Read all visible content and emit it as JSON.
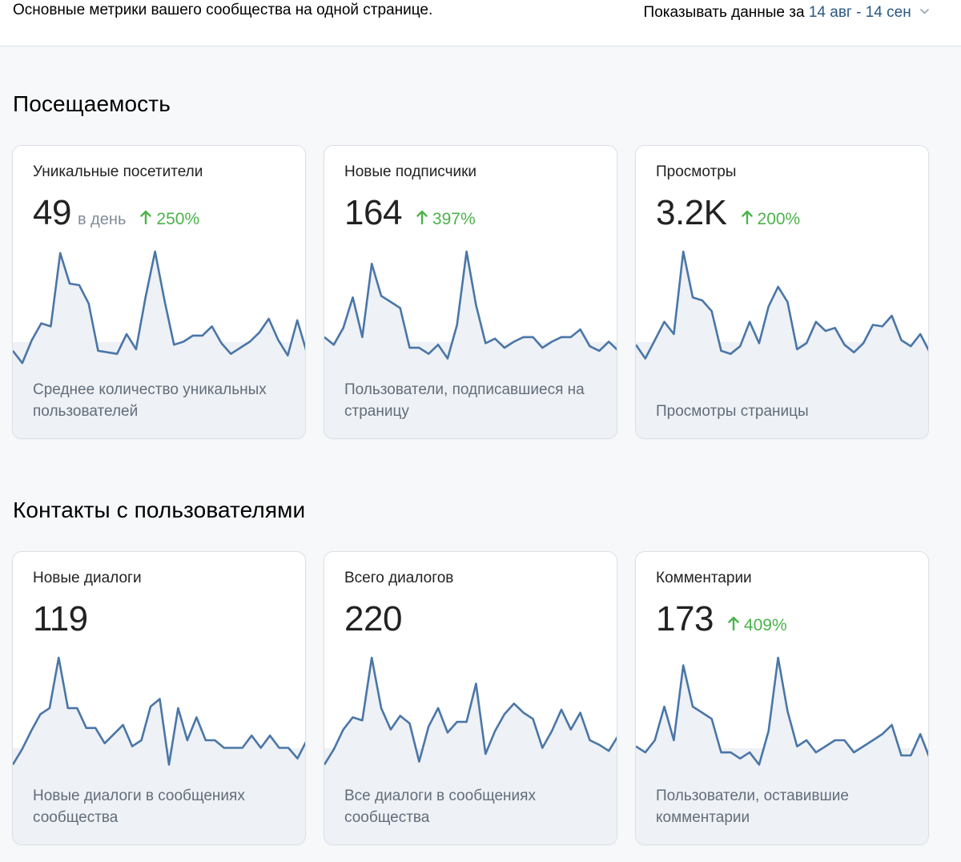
{
  "header": {
    "subtitle": "Основные метрики вашего сообщества на одной странице.",
    "period_label": "Показывать данные за",
    "period_range": "14 авг - 14 сен",
    "chevron_icon": "chevron-down-icon"
  },
  "colors": {
    "line": "#4a76a8",
    "fill": "#eef1f5",
    "positive": "#4bb34b",
    "link": "#2a5885"
  },
  "sections": [
    {
      "title": "Посещаемость",
      "cards": [
        {
          "title": "Уникальные посетители",
          "value": "49",
          "suffix": "в день",
          "change": "250%",
          "change_icon": "arrow-up-icon",
          "description": "Среднее количество уникальных пользователей",
          "series": [
            10,
            2,
            17,
            28,
            26,
            74,
            54,
            53,
            41,
            10,
            9,
            8,
            21,
            11,
            45,
            75,
            43,
            14,
            16,
            20,
            20,
            26,
            15,
            8,
            12,
            16,
            22,
            31,
            17,
            7,
            30,
            9
          ]
        },
        {
          "title": "Новые подписчики",
          "value": "164",
          "suffix": "",
          "change": "397%",
          "change_icon": "arrow-up-icon",
          "description": "Пользователи, подписавшиеся на страницу",
          "series": [
            19,
            14,
            25,
            45,
            19,
            67,
            46,
            42,
            38,
            12,
            12,
            8,
            14,
            5,
            27,
            75,
            40,
            15,
            18,
            12,
            16,
            19,
            19,
            12,
            16,
            19,
            19,
            24,
            13,
            10,
            16,
            10
          ]
        },
        {
          "title": "Просмотры",
          "value": "3.2K",
          "suffix": "",
          "change": "200%",
          "change_icon": "arrow-up-icon",
          "description": "Просмотры страницы",
          "series": [
            14,
            5,
            17,
            29,
            21,
            75,
            45,
            43,
            36,
            10,
            8,
            13,
            29,
            15,
            39,
            52,
            42,
            11,
            15,
            29,
            23,
            25,
            14,
            9,
            15,
            27,
            26,
            33,
            17,
            13,
            21,
            9
          ]
        }
      ]
    },
    {
      "title": "Контакты с пользователями",
      "cards": [
        {
          "title": "Новые диалоги",
          "value": "119",
          "suffix": "",
          "change": "",
          "change_icon": "",
          "description": "Новые диалоги в сообщениях сообщества",
          "series": [
            5,
            15,
            27,
            38,
            42,
            75,
            42,
            42,
            29,
            29,
            19,
            25,
            31,
            17,
            21,
            43,
            48,
            5,
            42,
            21,
            36,
            21,
            21,
            16,
            16,
            16,
            24,
            16,
            24,
            16,
            16,
            9,
            21
          ]
        },
        {
          "title": "Всего диалогов",
          "value": "220",
          "suffix": "",
          "change": "",
          "change_icon": "",
          "description": "Все диалоги в сообщениях сообщества",
          "series": [
            5,
            15,
            28,
            36,
            34,
            75,
            42,
            28,
            37,
            32,
            7,
            30,
            42,
            26,
            33,
            33,
            58,
            12,
            27,
            38,
            45,
            39,
            35,
            16,
            27,
            41,
            28,
            39,
            21,
            18,
            14,
            24
          ]
        },
        {
          "title": "Комментарии",
          "value": "173",
          "suffix": "",
          "change": "409%",
          "change_icon": "arrow-up-icon",
          "description": "Пользователи, оставившие комментарии",
          "series": [
            17,
            13,
            21,
            43,
            21,
            70,
            43,
            39,
            35,
            13,
            13,
            9,
            13,
            5,
            27,
            75,
            40,
            17,
            21,
            13,
            17,
            21,
            21,
            13,
            17,
            21,
            25,
            31,
            11,
            11,
            25,
            9
          ]
        }
      ]
    }
  ]
}
